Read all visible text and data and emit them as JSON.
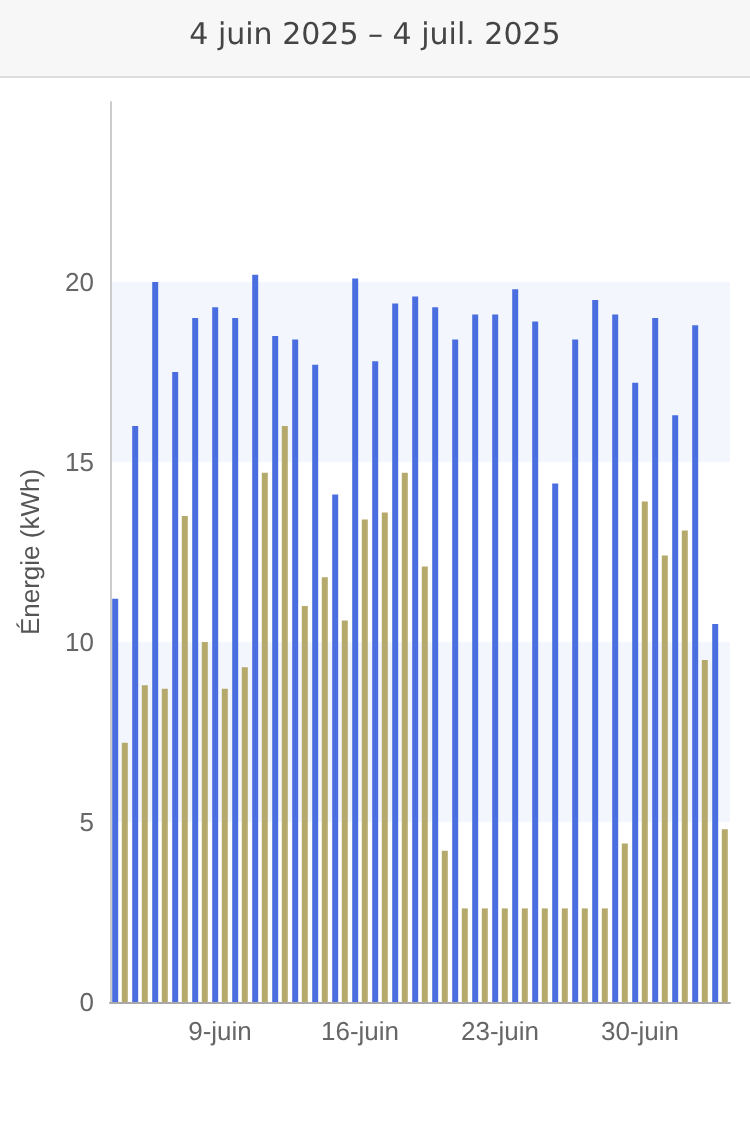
{
  "chart_data": {
    "type": "bar",
    "title": "4 juin 2025 – 4 juil. 2025",
    "ylabel": "Énergie (kWh)",
    "categories": [
      null,
      null,
      null,
      null,
      null,
      "9-juin",
      null,
      null,
      null,
      null,
      null,
      null,
      "16-juin",
      null,
      null,
      null,
      null,
      null,
      null,
      "23-juin",
      null,
      null,
      null,
      null,
      null,
      null,
      "30-juin",
      null,
      null,
      null,
      null
    ],
    "series": [
      {
        "color": "#4a6ee0",
        "values": [
          11.2,
          16,
          20,
          17.5,
          19,
          19.3,
          19,
          20.2,
          18.5,
          18.4,
          17.7,
          14.1,
          20.1,
          17.8,
          19.4,
          19.6,
          19.3,
          18.4,
          19.1,
          19.1,
          19.8,
          18.9,
          14.4,
          18.4,
          19.5,
          19.1,
          17.2,
          19,
          16.3,
          18.8,
          10.5
        ]
      },
      {
        "color": "#b5aa6c",
        "values": [
          7.2,
          8.8,
          8.7,
          13.5,
          10,
          8.7,
          9.3,
          14.7,
          16,
          11,
          11.8,
          10.6,
          13.4,
          13.6,
          14.7,
          12.1,
          4.2,
          2.6,
          2.6,
          2.6,
          2.6,
          2.6,
          2.6,
          2.6,
          2.6,
          4.4,
          13.9,
          12.4,
          13.1,
          9.5,
          4.8
        ]
      }
    ],
    "ylim": [
      0,
      25
    ],
    "yticks": [
      0,
      5,
      10,
      15,
      20
    ],
    "grid": false
  }
}
